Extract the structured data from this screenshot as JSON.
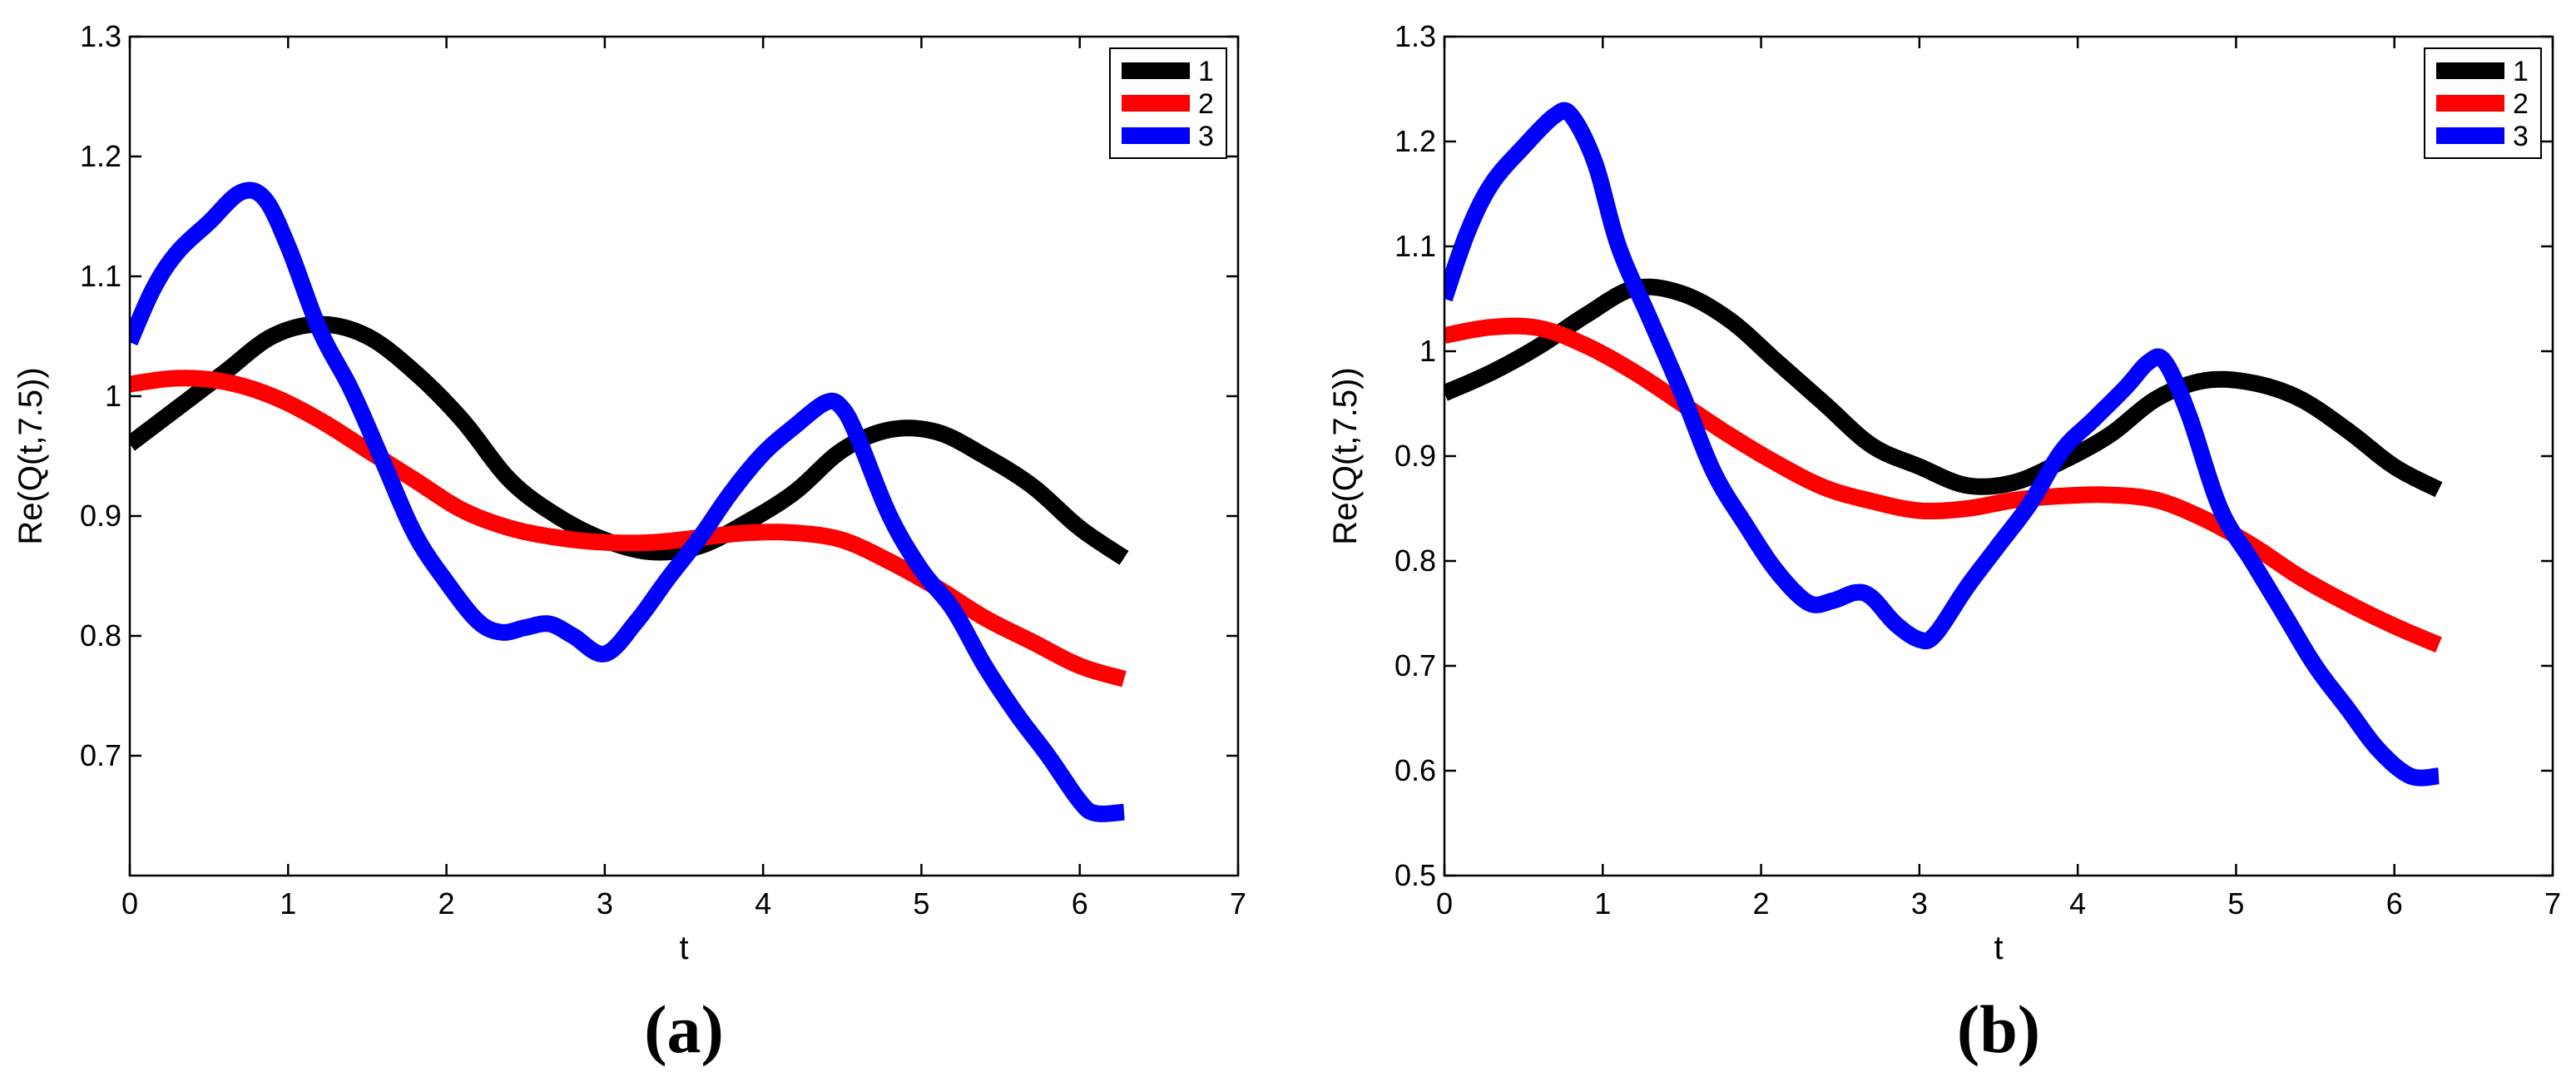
{
  "chart_data": [
    {
      "type": "line",
      "panel_label": "(a)",
      "xlabel": "t",
      "ylabel": "Re(Q(t,7.5))",
      "xlim": [
        0,
        7
      ],
      "ylim": [
        0.6,
        1.3
      ],
      "xticks": [
        0,
        1,
        2,
        3,
        4,
        5,
        6,
        7
      ],
      "xtick_labels": [
        "0",
        "1",
        "2",
        "3",
        "4",
        "5",
        "6",
        "7"
      ],
      "yticks": [
        0.7,
        0.8,
        0.9,
        1.0,
        1.1,
        1.2,
        1.3
      ],
      "ytick_labels": [
        "0.7",
        "0.8",
        "0.9",
        "1",
        "1.1",
        "1.2",
        "1.3"
      ],
      "grid": false,
      "legend_position": "top-right",
      "series": [
        {
          "name": "1",
          "color": "#000000",
          "x": [
            0,
            0.3,
            0.6,
            0.9,
            1.2,
            1.5,
            1.8,
            2.1,
            2.4,
            2.7,
            3.0,
            3.3,
            3.6,
            3.9,
            4.2,
            4.5,
            4.8,
            5.1,
            5.4,
            5.7,
            6.0,
            6.28
          ],
          "y": [
            0.96,
            0.99,
            1.02,
            1.05,
            1.06,
            1.05,
            1.02,
            0.98,
            0.93,
            0.9,
            0.88,
            0.87,
            0.875,
            0.895,
            0.92,
            0.955,
            0.972,
            0.97,
            0.95,
            0.925,
            0.89,
            0.865
          ]
        },
        {
          "name": "2",
          "color": "#ff0000",
          "x": [
            0,
            0.3,
            0.6,
            0.9,
            1.2,
            1.5,
            1.8,
            2.1,
            2.4,
            2.7,
            3.0,
            3.3,
            3.6,
            3.9,
            4.2,
            4.5,
            4.8,
            5.1,
            5.4,
            5.7,
            6.0,
            6.28
          ],
          "y": [
            1.01,
            1.015,
            1.012,
            1.0,
            0.98,
            0.955,
            0.93,
            0.905,
            0.89,
            0.882,
            0.878,
            0.878,
            0.882,
            0.886,
            0.886,
            0.88,
            0.862,
            0.84,
            0.815,
            0.795,
            0.775,
            0.764
          ]
        },
        {
          "name": "3",
          "color": "#0000ff",
          "x": [
            0,
            0.15,
            0.3,
            0.5,
            0.7,
            0.85,
            1.0,
            1.2,
            1.4,
            1.6,
            1.8,
            2.0,
            2.2,
            2.35,
            2.5,
            2.65,
            2.8,
            3.0,
            3.2,
            3.4,
            3.6,
            3.8,
            4.0,
            4.2,
            4.4,
            4.5,
            4.6,
            4.8,
            5.0,
            5.2,
            5.4,
            5.6,
            5.8,
            6.0,
            6.1,
            6.28
          ],
          "y": [
            1.045,
            1.09,
            1.12,
            1.145,
            1.17,
            1.165,
            1.125,
            1.055,
            1.005,
            0.945,
            0.885,
            0.845,
            0.812,
            0.803,
            0.807,
            0.81,
            0.8,
            0.785,
            0.812,
            0.848,
            0.882,
            0.92,
            0.952,
            0.975,
            0.995,
            0.99,
            0.965,
            0.9,
            0.855,
            0.822,
            0.775,
            0.735,
            0.7,
            0.662,
            0.652,
            0.653
          ]
        }
      ]
    },
    {
      "type": "line",
      "panel_label": "(b)",
      "xlabel": "t",
      "ylabel": "Re(Q(t,7.5))",
      "xlim": [
        0,
        7
      ],
      "ylim": [
        0.5,
        1.3
      ],
      "xticks": [
        0,
        1,
        2,
        3,
        4,
        5,
        6,
        7
      ],
      "xtick_labels": [
        "0",
        "1",
        "2",
        "3",
        "4",
        "5",
        "6",
        "7"
      ],
      "yticks": [
        0.5,
        0.6,
        0.7,
        0.8,
        0.9,
        1.0,
        1.1,
        1.2,
        1.3
      ],
      "ytick_labels": [
        "0.5",
        "0.6",
        "0.7",
        "0.8",
        "0.9",
        "1",
        "1.1",
        "1.2",
        "1.3"
      ],
      "grid": false,
      "legend_position": "top-right",
      "series": [
        {
          "name": "1",
          "color": "#000000",
          "x": [
            0,
            0.3,
            0.6,
            0.9,
            1.2,
            1.5,
            1.8,
            2.1,
            2.4,
            2.7,
            3.0,
            3.3,
            3.6,
            3.9,
            4.2,
            4.5,
            4.8,
            5.1,
            5.4,
            5.7,
            6.0,
            6.28
          ],
          "y": [
            0.96,
            0.98,
            1.005,
            1.035,
            1.06,
            1.055,
            1.03,
            0.99,
            0.95,
            0.91,
            0.89,
            0.872,
            0.875,
            0.895,
            0.92,
            0.955,
            0.972,
            0.97,
            0.955,
            0.925,
            0.89,
            0.868
          ]
        },
        {
          "name": "2",
          "color": "#ff0000",
          "x": [
            0,
            0.3,
            0.6,
            0.9,
            1.2,
            1.5,
            1.8,
            2.1,
            2.4,
            2.7,
            3.0,
            3.3,
            3.6,
            3.9,
            4.2,
            4.5,
            4.8,
            5.1,
            5.4,
            5.7,
            6.0,
            6.28
          ],
          "y": [
            1.015,
            1.023,
            1.022,
            1.005,
            0.98,
            0.95,
            0.92,
            0.893,
            0.87,
            0.857,
            0.848,
            0.85,
            0.858,
            0.862,
            0.863,
            0.858,
            0.84,
            0.815,
            0.785,
            0.76,
            0.738,
            0.72
          ]
        },
        {
          "name": "3",
          "color": "#0000ff",
          "x": [
            0,
            0.15,
            0.3,
            0.5,
            0.7,
            0.8,
            0.95,
            1.1,
            1.3,
            1.5,
            1.7,
            1.9,
            2.1,
            2.3,
            2.45,
            2.6,
            2.7,
            2.85,
            3.0,
            3.1,
            3.3,
            3.5,
            3.7,
            3.9,
            4.1,
            4.3,
            4.45,
            4.55,
            4.7,
            4.9,
            5.1,
            5.3,
            5.5,
            5.7,
            5.9,
            6.1,
            6.28
          ],
          "y": [
            1.05,
            1.115,
            1.16,
            1.195,
            1.225,
            1.225,
            1.18,
            1.1,
            1.03,
            0.96,
            0.885,
            0.835,
            0.79,
            0.76,
            0.762,
            0.77,
            0.765,
            0.74,
            0.725,
            0.73,
            0.775,
            0.815,
            0.855,
            0.905,
            0.935,
            0.965,
            0.99,
            0.99,
            0.94,
            0.85,
            0.8,
            0.75,
            0.7,
            0.66,
            0.62,
            0.595,
            0.595
          ]
        }
      ]
    }
  ]
}
